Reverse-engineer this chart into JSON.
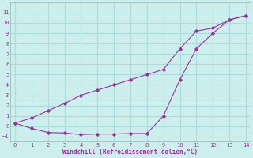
{
  "xlabel": "Windchill (Refroidissement éolien,°C)",
  "background_color": "#cceeed",
  "grid_color": "#aadddd",
  "line_color": "#993399",
  "line1_x": [
    0,
    1,
    2,
    3,
    4,
    5,
    6,
    7,
    8,
    9,
    10,
    11,
    12,
    13,
    14
  ],
  "line1_y": [
    0.3,
    0.8,
    1.5,
    2.2,
    3.0,
    3.5,
    4.0,
    4.5,
    5.0,
    5.5,
    7.5,
    9.2,
    9.5,
    10.3,
    10.7
  ],
  "line2_x": [
    0,
    1,
    2,
    3,
    4,
    5,
    6,
    7,
    8,
    9,
    10,
    11,
    12,
    13,
    14
  ],
  "line2_y": [
    0.3,
    -0.2,
    -0.6,
    -0.65,
    -0.8,
    -0.75,
    -0.75,
    -0.7,
    -0.7,
    1.0,
    4.5,
    7.5,
    9.0,
    10.3,
    10.7
  ],
  "xlim": [
    -0.3,
    14.3
  ],
  "ylim": [
    -1.5,
    12.0
  ],
  "yticks": [
    -1,
    0,
    1,
    2,
    3,
    4,
    5,
    6,
    7,
    8,
    9,
    10,
    11
  ],
  "xticks": [
    0,
    1,
    2,
    3,
    4,
    5,
    6,
    7,
    8,
    9,
    10,
    11,
    12,
    13,
    14
  ]
}
